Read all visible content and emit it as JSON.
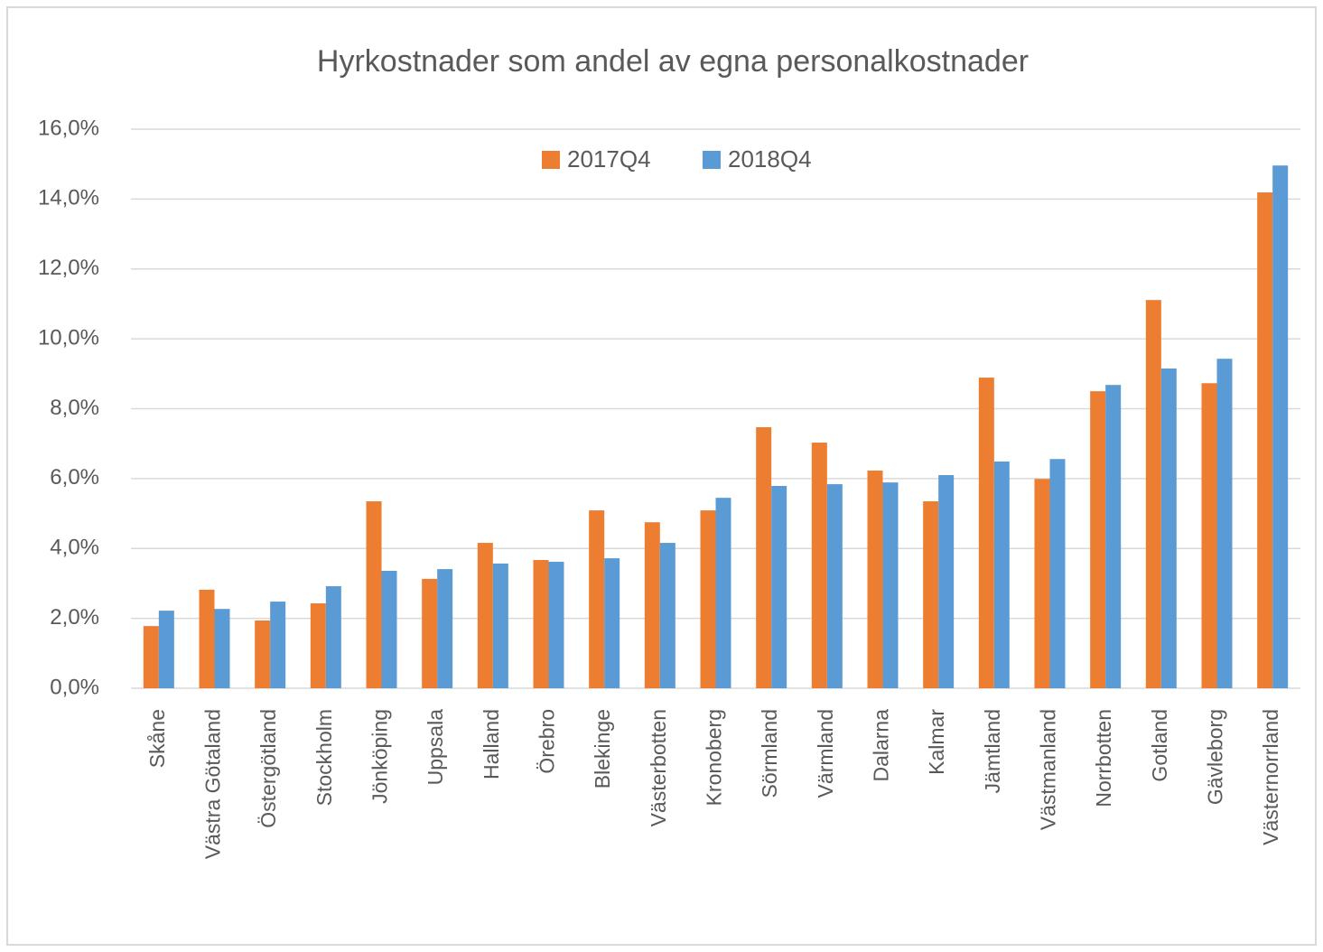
{
  "chart_data": {
    "type": "bar",
    "title": "Hyrkostnader som andel av egna personalkostnader",
    "categories": [
      "Skåne",
      "Västra Götaland",
      "Östergötland",
      "Stockholm",
      "Jönköping",
      "Uppsala",
      "Halland",
      "Örebro",
      "Blekinge",
      "Västerbotten",
      "Kronoberg",
      "Sörmland",
      "Värmland",
      "Dalarna",
      "Kalmar",
      "Jämtland",
      "Västmanland",
      "Norrbotten",
      "Gotland",
      "Gävleborg",
      "Västernorrland"
    ],
    "series": [
      {
        "name": "2017Q4",
        "color": "#ed7d31",
        "values": [
          1.78,
          2.82,
          1.94,
          2.43,
          5.35,
          3.13,
          4.16,
          3.67,
          5.09,
          4.75,
          5.09,
          7.47,
          7.03,
          6.23,
          5.35,
          8.89,
          5.99,
          8.5,
          11.11,
          8.73,
          14.19
        ]
      },
      {
        "name": "2018Q4",
        "color": "#5b9bd5",
        "values": [
          2.22,
          2.27,
          2.48,
          2.92,
          3.36,
          3.41,
          3.57,
          3.62,
          3.72,
          4.16,
          5.45,
          5.79,
          5.84,
          5.89,
          6.1,
          6.49,
          6.56,
          8.68,
          9.15,
          9.43,
          14.96
        ]
      }
    ],
    "ylim": [
      0,
      16
    ],
    "yticks": [
      {
        "value": 0,
        "label": "0,0%"
      },
      {
        "value": 2,
        "label": "2,0%"
      },
      {
        "value": 4,
        "label": "4,0%"
      },
      {
        "value": 6,
        "label": "6,0%"
      },
      {
        "value": 8,
        "label": "8,0%"
      },
      {
        "value": 10,
        "label": "10,0%"
      },
      {
        "value": 12,
        "label": "12,0%"
      },
      {
        "value": 14,
        "label": "14,0%"
      },
      {
        "value": 16,
        "label": "16,0%"
      }
    ],
    "grid": true,
    "legend": "top"
  }
}
